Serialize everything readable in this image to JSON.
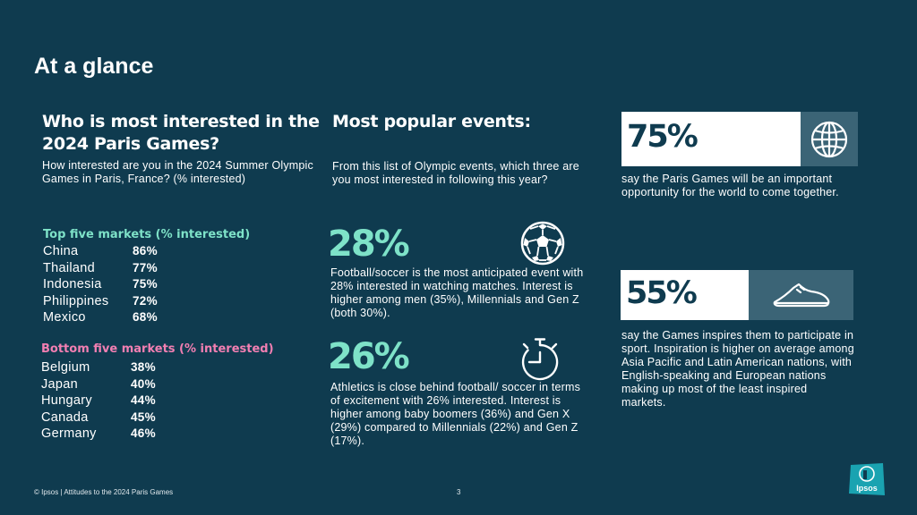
{
  "page_title": "At a glance",
  "col1": {
    "heading": "Who is most interested in the 2024 Paris Games?",
    "question": "How interested are you in the 2024 Summer Olympic Games in Paris, France? (% interested)",
    "top": {
      "heading": "Top five markets (% interested)",
      "color": "#7ee2c8",
      "items": [
        {
          "name": "China",
          "value": "86%"
        },
        {
          "name": "Thailand",
          "value": "77%"
        },
        {
          "name": "Indonesia",
          "value": "75%"
        },
        {
          "name": "Philippines",
          "value": "72%"
        },
        {
          "name": "Mexico",
          "value": "68%"
        }
      ]
    },
    "bottom": {
      "heading": "Bottom five markets (% interested)",
      "color": "#f27fb2",
      "items": [
        {
          "name": "Belgium",
          "value": "38%"
        },
        {
          "name": "Japan",
          "value": "40%"
        },
        {
          "name": "Hungary",
          "value": "44%"
        },
        {
          "name": "Canada",
          "value": "45%"
        },
        {
          "name": "Germany",
          "value": "46%"
        }
      ]
    }
  },
  "col2": {
    "heading": "Most popular events:",
    "question": "From this list of Olympic events, which three are you most interested in following this year?",
    "stat1": {
      "value": "28%",
      "icon": "soccer-ball-icon",
      "text": "Football/soccer is the most anticipated event with 28% interested in watching matches. Interest is higher among men (35%), Millennials and Gen Z (both 30%)."
    },
    "stat2": {
      "value": "26%",
      "icon": "stopwatch-icon",
      "text": "Athletics is close behind football/ soccer in terms of excitement with 26% interested. Interest is higher among baby boomers (36%) and Gen X (29%) compared to Millennials (22%) and Gen Z (17%)."
    }
  },
  "col3": {
    "stat1": {
      "value": "75%",
      "icon": "globe-icon",
      "text": "say the Paris Games will be an important opportunity for the world to come together."
    },
    "stat2": {
      "value": "55%",
      "icon": "sneaker-icon",
      "text": "say the Games inspires them to participate in sport. Inspiration is higher on average among Asia Pacific and Latin American nations, with English-speaking and European nations making up most of the least inspired markets."
    }
  },
  "footer": {
    "source": "© Ipsos | Attitudes to the 2024 Paris Games",
    "page_number": "3",
    "logo_text": "Ipsos"
  },
  "colors": {
    "background": "#0f3b4f",
    "accent_teal": "#7ee2c8",
    "accent_pink": "#f27fb2",
    "icon_box": "#3b6476",
    "logo": "#1aa3b1"
  }
}
